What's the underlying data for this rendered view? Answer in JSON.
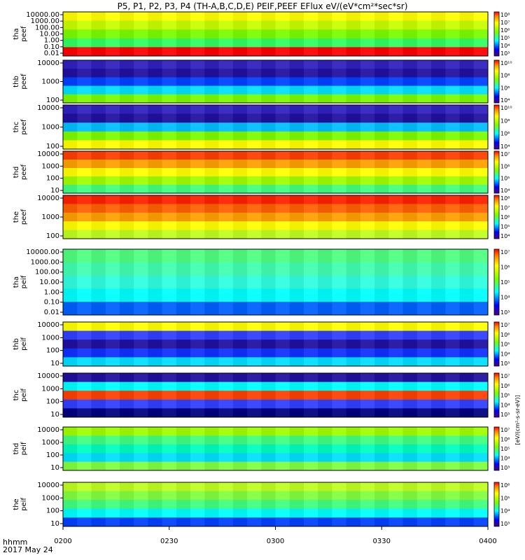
{
  "title": "P5, P1, P2, P3, P4 (TH-A,B,C,D,E) PEIF,PEEF EFlux eV/(eV*cm²*sec*sr)",
  "time_axis": {
    "label_line1": "hhmm",
    "label_line2": "2017 May 24",
    "ticks": [
      "0200",
      "0230",
      "0300",
      "0330",
      "0400"
    ]
  },
  "chart_data": [
    {
      "type": "heatmap",
      "panel": "tha peef",
      "ylabel": [
        "tha",
        "peef"
      ],
      "yticks": [
        "10000.00",
        "1000.00",
        "100.00",
        "10.00",
        "1.00",
        "0.10",
        "0.01"
      ],
      "colorbar_ticks": [
        "10⁸",
        "10⁷",
        "10⁶",
        "10⁵",
        "10⁴",
        "10³"
      ]
    },
    {
      "type": "heatmap",
      "panel": "thb peef",
      "ylabel": [
        "thb",
        "peef"
      ],
      "yticks": [
        "10000",
        "1000",
        "100"
      ],
      "colorbar_ticks": [
        "10¹⁰",
        "10⁸",
        "10⁶",
        "10⁴"
      ]
    },
    {
      "type": "heatmap",
      "panel": "thc peef",
      "ylabel": [
        "thc",
        "peef"
      ],
      "yticks": [
        "10000",
        "1000",
        "100"
      ],
      "colorbar_ticks": [
        "10¹⁰",
        "10⁸",
        "10⁶",
        "10⁴"
      ]
    },
    {
      "type": "heatmap",
      "panel": "thd peef",
      "ylabel": [
        "thd",
        "peef"
      ],
      "yticks": [
        "10000",
        "1000",
        "100",
        "10"
      ],
      "colorbar_ticks": [
        "10⁷",
        "10⁶",
        "10⁵",
        "10⁴"
      ]
    },
    {
      "type": "heatmap",
      "panel": "the peef",
      "ylabel": [
        "the",
        "peef"
      ],
      "yticks": [
        "10000",
        "1000",
        "100"
      ],
      "colorbar_ticks": [
        "10⁸",
        "10⁷",
        "10⁶",
        "10⁵",
        "10⁴"
      ]
    },
    {
      "type": "heatmap",
      "panel": "tha peif",
      "ylabel": [
        "tha",
        "peif"
      ],
      "yticks": [
        "10000.00",
        "1000.00",
        "100.00",
        "10.00",
        "1.00",
        "0.10",
        "0.01"
      ],
      "colorbar_ticks": [
        "10⁷",
        "10⁶",
        "10⁵",
        "10⁴",
        "10³"
      ]
    },
    {
      "type": "heatmap",
      "panel": "thb peif",
      "ylabel": [
        "thb",
        "peif"
      ],
      "yticks": [
        "10000",
        "1000",
        "100",
        "10"
      ],
      "colorbar_ticks": [
        "10⁷",
        "10⁶",
        "10⁵",
        "10⁴",
        "10³"
      ]
    },
    {
      "type": "heatmap",
      "panel": "thc peif",
      "ylabel": [
        "thc",
        "peif"
      ],
      "yticks": [
        "10000",
        "1000",
        "100",
        "10"
      ],
      "colorbar_ticks": [
        "10⁷",
        "10⁶",
        "10⁵",
        "10⁴",
        "10³"
      ]
    },
    {
      "type": "heatmap",
      "panel": "thd peif",
      "ylabel": [
        "thd",
        "peif"
      ],
      "yticks": [
        "10000",
        "1000",
        "100",
        "10"
      ],
      "colorbar_ticks": [
        "10⁷",
        "10⁶",
        "10⁵",
        "10⁴",
        "10³"
      ]
    },
    {
      "type": "heatmap",
      "panel": "the peif",
      "ylabel": [
        "the",
        "peif"
      ],
      "yticks": [
        "10000",
        "1000",
        "100",
        "10"
      ],
      "colorbar_ticks": [
        "10⁶",
        "10⁵",
        "10⁴",
        "10³"
      ]
    }
  ],
  "colorbar_unit_label": "[eV/(cm²-s-sr-eV)]"
}
